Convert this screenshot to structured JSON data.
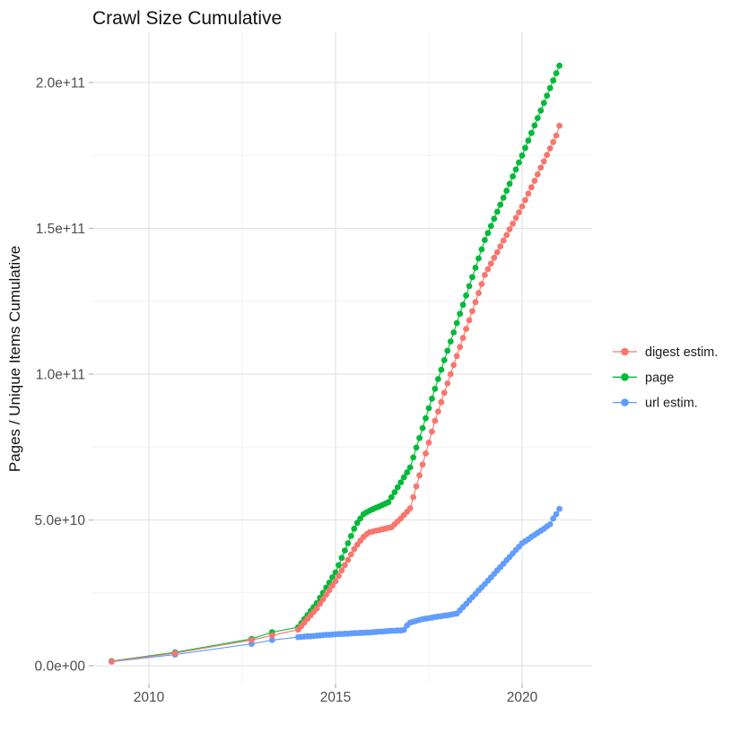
{
  "title": "Crawl Size Cumulative",
  "y_axis": {
    "label": "Pages / Unique Items Cumulative",
    "ticks": [
      "0.0e+00",
      "5.0e+10",
      "1.0e+11",
      "1.5e+11",
      "2.0e+11"
    ],
    "tick_values": [
      0,
      50000000000.0,
      100000000000.0,
      150000000000.0,
      200000000000.0
    ]
  },
  "x_axis": {
    "ticks": [
      "2010",
      "2015",
      "2020"
    ],
    "tick_values": [
      2010,
      2015,
      2020
    ]
  },
  "legend": {
    "items": [
      {
        "label": "digest estim.",
        "color": "#F8766D"
      },
      {
        "label": "page",
        "color": "#00BA38"
      },
      {
        "label": "url estim.",
        "color": "#619CFF"
      }
    ]
  },
  "chart_data": {
    "type": "scatter",
    "title": "Crawl Size Cumulative",
    "xlabel": "",
    "ylabel": "Pages / Unique Items Cumulative",
    "xlim": [
      2008.5,
      2021.9
    ],
    "ylim": [
      -6000000000.0,
      217000000000.0
    ],
    "grid": true,
    "legend_position": "right",
    "x_minor_breaks": [
      2012.5,
      2017.5
    ],
    "y_minor_breaks": [
      25000000000.0,
      75000000000.0,
      125000000000.0,
      175000000000.0
    ],
    "x": [
      2009,
      2010.7,
      2012.75,
      2013.3,
      2014,
      2014.083,
      2014.167,
      2014.25,
      2014.333,
      2014.417,
      2014.5,
      2014.583,
      2014.667,
      2014.75,
      2014.833,
      2014.917,
      2015,
      2015.083,
      2015.167,
      2015.25,
      2015.333,
      2015.417,
      2015.5,
      2015.583,
      2015.667,
      2015.75,
      2015.833,
      2015.917,
      2016,
      2016.083,
      2016.167,
      2016.25,
      2016.333,
      2016.417,
      2016.5,
      2016.583,
      2016.667,
      2016.75,
      2016.833,
      2016.917,
      2017,
      2017.083,
      2017.167,
      2017.25,
      2017.333,
      2017.417,
      2017.5,
      2017.583,
      2017.667,
      2017.75,
      2017.833,
      2017.917,
      2018,
      2018.083,
      2018.167,
      2018.25,
      2018.333,
      2018.417,
      2018.5,
      2018.583,
      2018.667,
      2018.75,
      2018.833,
      2018.917,
      2019,
      2019.083,
      2019.167,
      2019.25,
      2019.333,
      2019.417,
      2019.5,
      2019.583,
      2019.667,
      2019.75,
      2019.833,
      2019.917,
      2020,
      2020.083,
      2020.167,
      2020.25,
      2020.333,
      2020.417,
      2020.5,
      2020.583,
      2020.667,
      2020.75,
      2020.833,
      2020.917,
      2021
    ],
    "series": [
      {
        "name": "digest estim.",
        "color": "#F8766D",
        "values": [
          1500000000.0,
          4300000000.0,
          8800000000.0,
          10400000000.0,
          12400000000.0,
          13600000000.0,
          14800000000.0,
          16100000000.0,
          17300000000.0,
          18500000000.0,
          19700000000.0,
          21300000000.0,
          22800000000.0,
          24400000000.0,
          25900000000.0,
          27500000000.0,
          29000000000.0,
          30800000000.0,
          32700000000.0,
          34500000000.0,
          36300000000.0,
          38200000000.0,
          40000000000.0,
          41500000000.0,
          42900000000.0,
          44200000000.0,
          45100000000.0,
          45800000000.0,
          46000000000.0,
          46300000000.0,
          46500000000.0,
          46800000000.0,
          47000000000.0,
          47300000000.0,
          47500000000.0,
          48500000000.0,
          49500000000.0,
          50500000000.0,
          51700000000.0,
          52800000000.0,
          54000000000.0,
          57800000000.0,
          61500000000.0,
          65300000000.0,
          69000000000.0,
          72800000000.0,
          76500000000.0,
          80300000000.0,
          84000000000.0,
          87200000000.0,
          90400000000.0,
          93600000000.0,
          96800000000.0,
          100000000000.0,
          103100000000.0,
          106200000000.0,
          109300000000.0,
          112400000000.0,
          115500000000.0,
          118500000000.0,
          121600000000.0,
          124700000000.0,
          127800000000.0,
          130900000000.0,
          134000000000.0,
          136000000000.0,
          137900000000.0,
          139900000000.0,
          141800000000.0,
          143800000000.0,
          145800000000.0,
          147700000000.0,
          149700000000.0,
          151600000000.0,
          153600000000.0,
          155500000000.0,
          157500000000.0,
          159700000000.0,
          161900000000.0,
          164100000000.0,
          166300000000.0,
          168500000000.0,
          170800000000.0,
          173000000000.0,
          175200000000.0,
          177400000000.0,
          179600000000.0,
          181800000000.0,
          185200000000.0
        ]
      },
      {
        "name": "page",
        "color": "#00BA38",
        "values": [
          1600000000.0,
          4600000000.0,
          9200000000.0,
          11500000000.0,
          13200000000.0,
          14600000000.0,
          16000000000.0,
          17400000000.0,
          18800000000.0,
          20100000000.0,
          21500000000.0,
          23300000000.0,
          25000000000.0,
          26800000000.0,
          28500000000.0,
          30300000000.0,
          32000000000.0,
          34500000000.0,
          37000000000.0,
          39500000000.0,
          42000000000.0,
          44500000000.0,
          47000000000.0,
          49000000000.0,
          50500000000.0,
          52000000000.0,
          52600000000.0,
          53200000000.0,
          53700000000.0,
          54200000000.0,
          54600000000.0,
          55100000000.0,
          55600000000.0,
          56100000000.0,
          57800000000.0,
          59500000000.0,
          61200000000.0,
          62900000000.0,
          64600000000.0,
          66300000000.0,
          68000000000.0,
          71400000000.0,
          74800000000.0,
          78100000000.0,
          81500000000.0,
          84900000000.0,
          88300000000.0,
          91600000000.0,
          95000000000.0,
          98300000000.0,
          101500000000.0,
          104800000000.0,
          108000000000.0,
          111200000000.0,
          114300000000.0,
          117500000000.0,
          120700000000.0,
          123800000000.0,
          127000000000.0,
          130200000000.0,
          133300000000.0,
          136500000000.0,
          139700000000.0,
          142800000000.0,
          146000000000.0,
          148400000000.0,
          150800000000.0,
          153300000000.0,
          155700000000.0,
          158100000000.0,
          160500000000.0,
          162900000000.0,
          165300000000.0,
          167800000000.0,
          170200000000.0,
          172600000000.0,
          175000000000.0,
          177600000000.0,
          180100000000.0,
          182700000000.0,
          185300000000.0,
          187800000000.0,
          190400000000.0,
          193000000000.0,
          195500000000.0,
          198100000000.0,
          200700000000.0,
          203200000000.0,
          205800000000.0
        ]
      },
      {
        "name": "url estim.",
        "color": "#619CFF",
        "values": [
          1400000000.0,
          3800000000.0,
          7500000000.0,
          8800000000.0,
          9800000000.0,
          9900000000.0,
          10000000000.0,
          10100000000.0,
          10100000000.0,
          10200000000.0,
          10300000000.0,
          10400000000.0,
          10500000000.0,
          10600000000.0,
          10600000000.0,
          10700000000.0,
          10800000000.0,
          10900000000.0,
          10900000000.0,
          11000000000.0,
          11000000000.0,
          11100000000.0,
          11200000000.0,
          11200000000.0,
          11300000000.0,
          11300000000.0,
          11400000000.0,
          11400000000.0,
          11500000000.0,
          11600000000.0,
          11700000000.0,
          11700000000.0,
          11800000000.0,
          11900000000.0,
          12000000000.0,
          12000000000.0,
          12100000000.0,
          12100000000.0,
          12300000000.0,
          13800000000.0,
          14800000000.0,
          15100000000.0,
          15400000000.0,
          15700000000.0,
          16000000000.0,
          16150000000.0,
          16300000000.0,
          16500000000.0,
          16700000000.0,
          16900000000.0,
          17000000000.0,
          17200000000.0,
          17300000000.0,
          17500000000.0,
          17700000000.0,
          17900000000.0,
          19000000000.0,
          20100000000.0,
          21200000000.0,
          22400000000.0,
          23500000000.0,
          24600000000.0,
          25800000000.0,
          26900000000.0,
          28000000000.0,
          29200000000.0,
          30300000000.0,
          31500000000.0,
          32700000000.0,
          33800000000.0,
          35000000000.0,
          36200000000.0,
          37300000000.0,
          38500000000.0,
          39700000000.0,
          40800000000.0,
          42000000000.0,
          42700000000.0,
          43400000000.0,
          44200000000.0,
          44900000000.0,
          45600000000.0,
          46300000000.0,
          47000000000.0,
          47800000000.0,
          48500000000.0,
          50500000000.0,
          52000000000.0,
          53800000000.0
        ]
      }
    ]
  }
}
